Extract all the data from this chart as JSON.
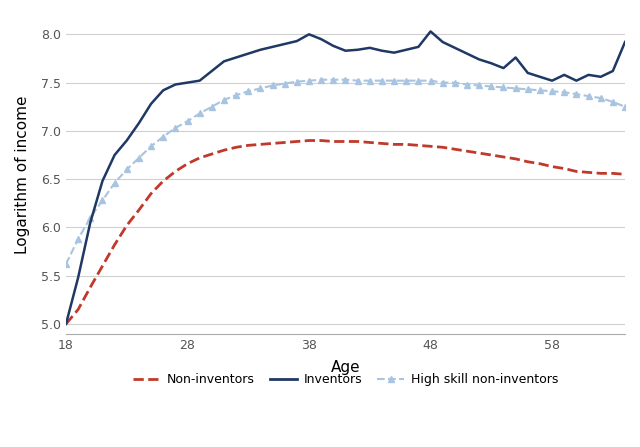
{
  "title": "",
  "xlabel": "Age",
  "ylabel": "Logarithm of income",
  "xlim": [
    18,
    64
  ],
  "ylim": [
    4.9,
    8.2
  ],
  "xticks": [
    18,
    28,
    38,
    48,
    58
  ],
  "yticks": [
    5.0,
    5.5,
    6.0,
    6.5,
    7.0,
    7.5,
    8.0
  ],
  "background_color": "#ffffff",
  "grid_color": "#d0d0d0",
  "inventors_ages": [
    18,
    19,
    20,
    21,
    22,
    23,
    24,
    25,
    26,
    27,
    28,
    29,
    30,
    31,
    32,
    33,
    34,
    35,
    36,
    37,
    38,
    39,
    40,
    41,
    42,
    43,
    44,
    45,
    46,
    47,
    48,
    49,
    50,
    51,
    52,
    53,
    54,
    55,
    56,
    57,
    58,
    59,
    60,
    61,
    62,
    63,
    64
  ],
  "inventors_vals": [
    5.0,
    5.48,
    6.05,
    6.48,
    6.75,
    6.9,
    7.08,
    7.28,
    7.42,
    7.48,
    7.5,
    7.52,
    7.62,
    7.72,
    7.76,
    7.8,
    7.84,
    7.87,
    7.9,
    7.93,
    8.0,
    7.95,
    7.88,
    7.83,
    7.84,
    7.86,
    7.83,
    7.81,
    7.84,
    7.87,
    8.03,
    7.92,
    7.86,
    7.8,
    7.74,
    7.7,
    7.65,
    7.76,
    7.6,
    7.56,
    7.52,
    7.58,
    7.52,
    7.58,
    7.56,
    7.62,
    7.92
  ],
  "inventors_color": "#1f3864",
  "inventors_linewidth": 1.8,
  "non_inv_ages": [
    18,
    19,
    20,
    21,
    22,
    23,
    24,
    25,
    26,
    27,
    28,
    29,
    30,
    31,
    32,
    33,
    34,
    35,
    36,
    37,
    38,
    39,
    40,
    41,
    42,
    43,
    44,
    45,
    46,
    47,
    48,
    49,
    50,
    51,
    52,
    53,
    54,
    55,
    56,
    57,
    58,
    59,
    60,
    61,
    62,
    63,
    64
  ],
  "non_inv_vals": [
    5.0,
    5.15,
    5.38,
    5.6,
    5.82,
    6.02,
    6.18,
    6.35,
    6.48,
    6.58,
    6.66,
    6.72,
    6.76,
    6.8,
    6.83,
    6.85,
    6.86,
    6.87,
    6.88,
    6.89,
    6.9,
    6.9,
    6.89,
    6.89,
    6.89,
    6.88,
    6.87,
    6.86,
    6.86,
    6.85,
    6.84,
    6.83,
    6.81,
    6.79,
    6.77,
    6.75,
    6.73,
    6.71,
    6.68,
    6.66,
    6.63,
    6.61,
    6.58,
    6.57,
    6.56,
    6.56,
    6.55
  ],
  "non_inv_color": "#c0392b",
  "non_inv_linewidth": 2.0,
  "highskill_ages": [
    18,
    19,
    20,
    21,
    22,
    23,
    24,
    25,
    26,
    27,
    28,
    29,
    30,
    31,
    32,
    33,
    34,
    35,
    36,
    37,
    38,
    39,
    40,
    41,
    42,
    43,
    44,
    45,
    46,
    47,
    48,
    49,
    50,
    51,
    52,
    53,
    54,
    55,
    56,
    57,
    58,
    59,
    60,
    61,
    62,
    63,
    64
  ],
  "highskill_vals": [
    5.62,
    5.88,
    6.1,
    6.28,
    6.46,
    6.6,
    6.72,
    6.84,
    6.94,
    7.03,
    7.1,
    7.18,
    7.25,
    7.32,
    7.37,
    7.41,
    7.44,
    7.47,
    7.49,
    7.51,
    7.52,
    7.53,
    7.53,
    7.53,
    7.52,
    7.52,
    7.52,
    7.52,
    7.52,
    7.52,
    7.52,
    7.5,
    7.5,
    7.48,
    7.47,
    7.46,
    7.45,
    7.44,
    7.43,
    7.42,
    7.41,
    7.4,
    7.38,
    7.36,
    7.34,
    7.3,
    7.25
  ],
  "highskill_color": "#a8c4e0",
  "highskill_linewidth": 1.5,
  "highskill_markersize": 4,
  "legend_labels": [
    "Non-inventors",
    "Inventors",
    "High skill non-inventors"
  ]
}
